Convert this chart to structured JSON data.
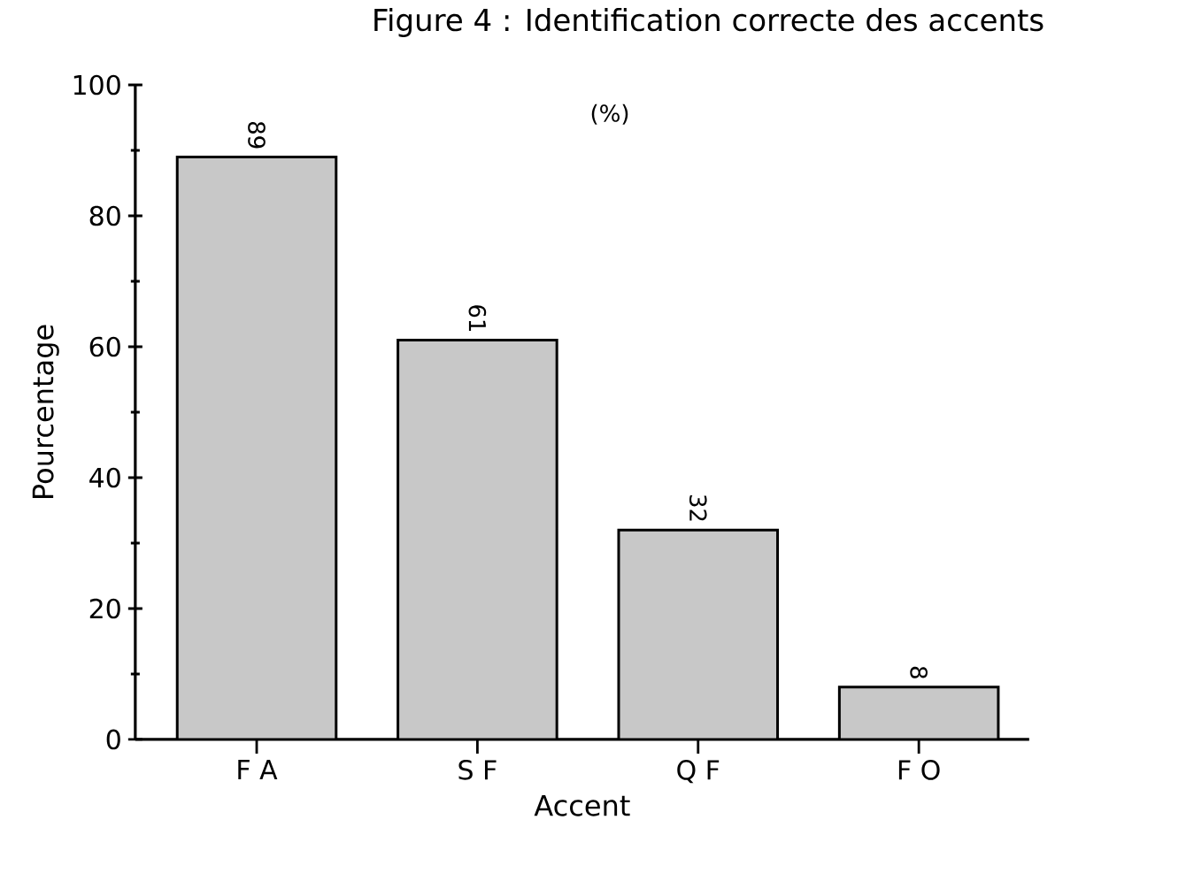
{
  "chart_data": {
    "type": "bar",
    "title": "Figure 4 : Identification correcte des accents",
    "annotations": [
      "(%)"
    ],
    "xlabel": "Accent",
    "ylabel": "Pourcentage",
    "categories": [
      "F A",
      "S F",
      "Q F",
      "F O"
    ],
    "values": [
      89,
      61,
      32,
      8
    ],
    "color": "#c8c8c8",
    "ylim": [
      0,
      100
    ],
    "yticks": [
      0,
      20,
      40,
      60,
      80,
      100
    ],
    "data_labels": true
  }
}
